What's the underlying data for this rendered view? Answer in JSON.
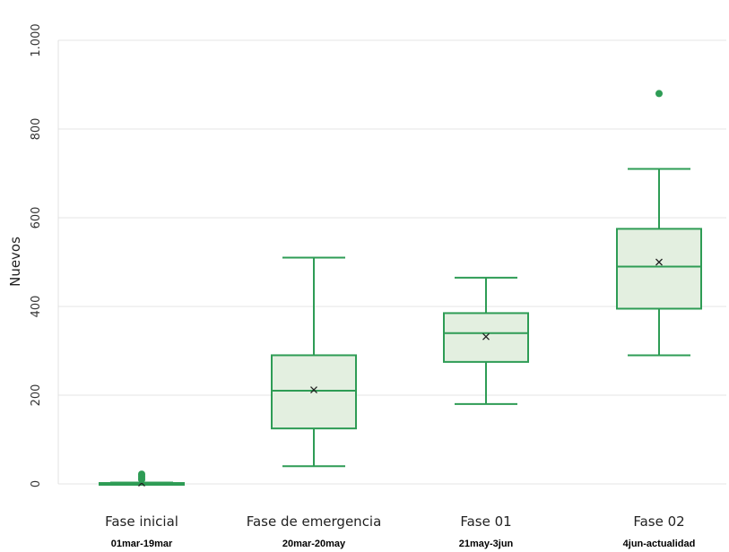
{
  "chart_data": {
    "type": "box",
    "ylabel": "Nuevos",
    "ylim": [
      0,
      1000
    ],
    "yticks": [
      0,
      200,
      400,
      600,
      800,
      1000
    ],
    "ytick_labels": [
      "0",
      "200",
      "400",
      "600",
      "800",
      "1.000"
    ],
    "grid": "horizontal",
    "categories": [
      "Fase inicial",
      "Fase de emergencia",
      "Fase 01",
      "Fase 02"
    ],
    "date_ranges": [
      "01mar-19mar",
      "20mar-20may",
      "21may-3jun",
      "4jun-actualidad"
    ],
    "boxes": [
      {
        "whisker_low": 0,
        "q1": 1,
        "median": 1,
        "q3": 2,
        "whisker_high": 3,
        "mean": 2,
        "outliers": [
          10,
          14,
          18,
          22
        ]
      },
      {
        "whisker_low": 40,
        "q1": 125,
        "median": 210,
        "q3": 290,
        "whisker_high": 510,
        "mean": 212,
        "outliers": []
      },
      {
        "whisker_low": 180,
        "q1": 275,
        "median": 340,
        "q3": 385,
        "whisker_high": 465,
        "mean": 332,
        "outliers": []
      },
      {
        "whisker_low": 290,
        "q1": 395,
        "median": 490,
        "q3": 575,
        "whisker_high": 710,
        "mean": 500,
        "outliers": [
          880
        ]
      }
    ],
    "colors": {
      "box_fill": "#e3efe0",
      "box_stroke": "#2e9c55",
      "outlier": "#2e9c55",
      "mean_marker": "#222222",
      "grid": "#e6e6e6"
    }
  }
}
